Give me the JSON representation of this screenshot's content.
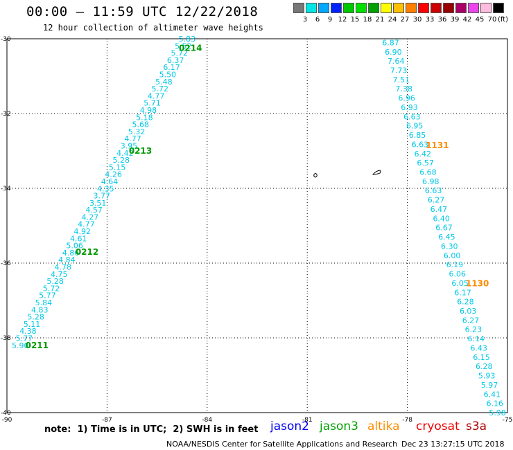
{
  "title": "00:00 – 11:59 UTC 12/22/2018",
  "subtitle": "12 hour collection of altimeter wave heights",
  "color_scale": {
    "labels": [
      "3",
      "6",
      "9",
      "12",
      "15",
      "18",
      "21",
      "24",
      "27",
      "30",
      "33",
      "36",
      "39",
      "42",
      "45",
      "70"
    ],
    "colors": [
      "#777777",
      "#00e5e5",
      "#00a8ff",
      "#0022ff",
      "#00c800",
      "#00e000",
      "#00a000",
      "#ffff00",
      "#ffc000",
      "#ff8000",
      "#ff0000",
      "#cc0000",
      "#990000",
      "#aa0066",
      "#ee44ee",
      "#ffbbdd",
      "#000000"
    ],
    "unit": "(ft)"
  },
  "chart_data": {
    "type": "map",
    "grid": true,
    "xlim": [
      -90,
      -75
    ],
    "ylim": [
      -40,
      -30
    ],
    "x_ticks": [
      "-90",
      "-87",
      "-84",
      "-81",
      "-78",
      "-75"
    ],
    "y_ticks": [
      "-30",
      "-32",
      "-34",
      "-36",
      "-38",
      "-40"
    ],
    "tracks": [
      {
        "color": "#00c8e6",
        "lat_start": -30.0,
        "lat_end": -38.2,
        "lon_start": -84.6,
        "lon_end": -89.6,
        "values": [
          "5.83",
          "5.52",
          "5.72",
          "6.37",
          "6.17",
          "5.50",
          "5.48",
          "5.72",
          "4.77",
          "5.71",
          "4.98",
          "5.18",
          "5.68",
          "5.32",
          "4.77",
          "3.95",
          "4.42",
          "5.28",
          "5.15",
          "4.26",
          "4.64",
          "4.35",
          "3.77",
          "3.51",
          "4.57",
          "4.27",
          "4.77",
          "4.92",
          "4.61",
          "5.06",
          "4.86",
          "4.84",
          "4.78",
          "4.75",
          "5.28",
          "5.72",
          "5.77",
          "5.84",
          "4.83",
          "5.28",
          "5.11",
          "4.38",
          "5.77",
          "5.90"
        ],
        "times": [
          {
            "label": "0214",
            "lat": -30.25,
            "lon": -84.5
          },
          {
            "label": "0213",
            "lat": -33.0,
            "lon": -86.0
          },
          {
            "label": "0212",
            "lat": -35.7,
            "lon": -87.6
          },
          {
            "label": "0211",
            "lat": -38.2,
            "lon": -89.1
          }
        ],
        "time_color": "#009900"
      },
      {
        "color": "#00c8e6",
        "lat_start": -30.1,
        "lat_end": -40.0,
        "lon_start": -78.5,
        "lon_end": -75.3,
        "values": [
          "6.87",
          "6.90",
          "7.64",
          "7.73",
          "7.51",
          "7.38",
          "6.96",
          "6.93",
          "6.63",
          "6.95",
          "6.85",
          "6.63",
          "6.42",
          "6.57",
          "6.68",
          "6.98",
          "6.63",
          "6.27",
          "6.47",
          "6.40",
          "6.67",
          "6.45",
          "6.30",
          "6.00",
          "6.19",
          "6.06",
          "6.05",
          "6.17",
          "6.28",
          "6.03",
          "6.27",
          "6.23",
          "6.14",
          "6.43",
          "6.15",
          "6.28",
          "5.93",
          "5.97",
          "6.41",
          "6.16",
          "5.98"
        ],
        "times": [
          {
            "label": "1131",
            "lat": -32.85,
            "lon": -77.1
          },
          {
            "label": "1130",
            "lat": -36.55,
            "lon": -75.9
          }
        ],
        "time_color": "#ff8c00"
      }
    ]
  },
  "note": "note:  1) Time is in UTC;  2) SWH is in feet",
  "satellites": [
    {
      "name": "jason2",
      "color": "#0000ee"
    },
    {
      "name": "jason3",
      "color": "#00a000"
    },
    {
      "name": "altika",
      "color": "#ff8c00"
    },
    {
      "name": "cryosat",
      "color": "#ee0000"
    },
    {
      "name": "s3a",
      "color": "#aa0000"
    }
  ],
  "footer_left": "NOAA/NESDIS Center for Satellite Applications and Research",
  "footer_right": "Dec 23 13:27:15 UTC 2018"
}
